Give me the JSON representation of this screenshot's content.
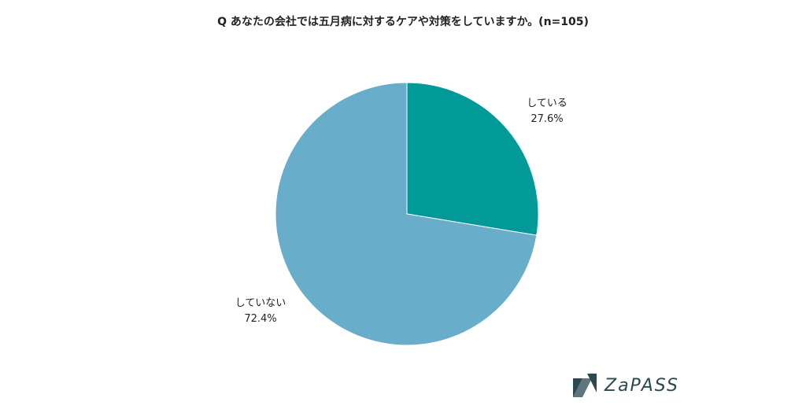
{
  "chart_data": {
    "type": "pie",
    "title": "Q あなたの会社では五月病に対するケアや対策をしていますか。(n=105)",
    "slices": [
      {
        "label": "している",
        "value": 27.6,
        "value_label": "27.6%",
        "color": "#029999"
      },
      {
        "label": "していない",
        "value": 72.4,
        "value_label": "72.4%",
        "color": "#68adc9"
      }
    ],
    "start_angle": "12 o'clock",
    "direction": "clockwise"
  },
  "logo": {
    "text": "ZaPASS",
    "color": "#2a4a4f"
  }
}
